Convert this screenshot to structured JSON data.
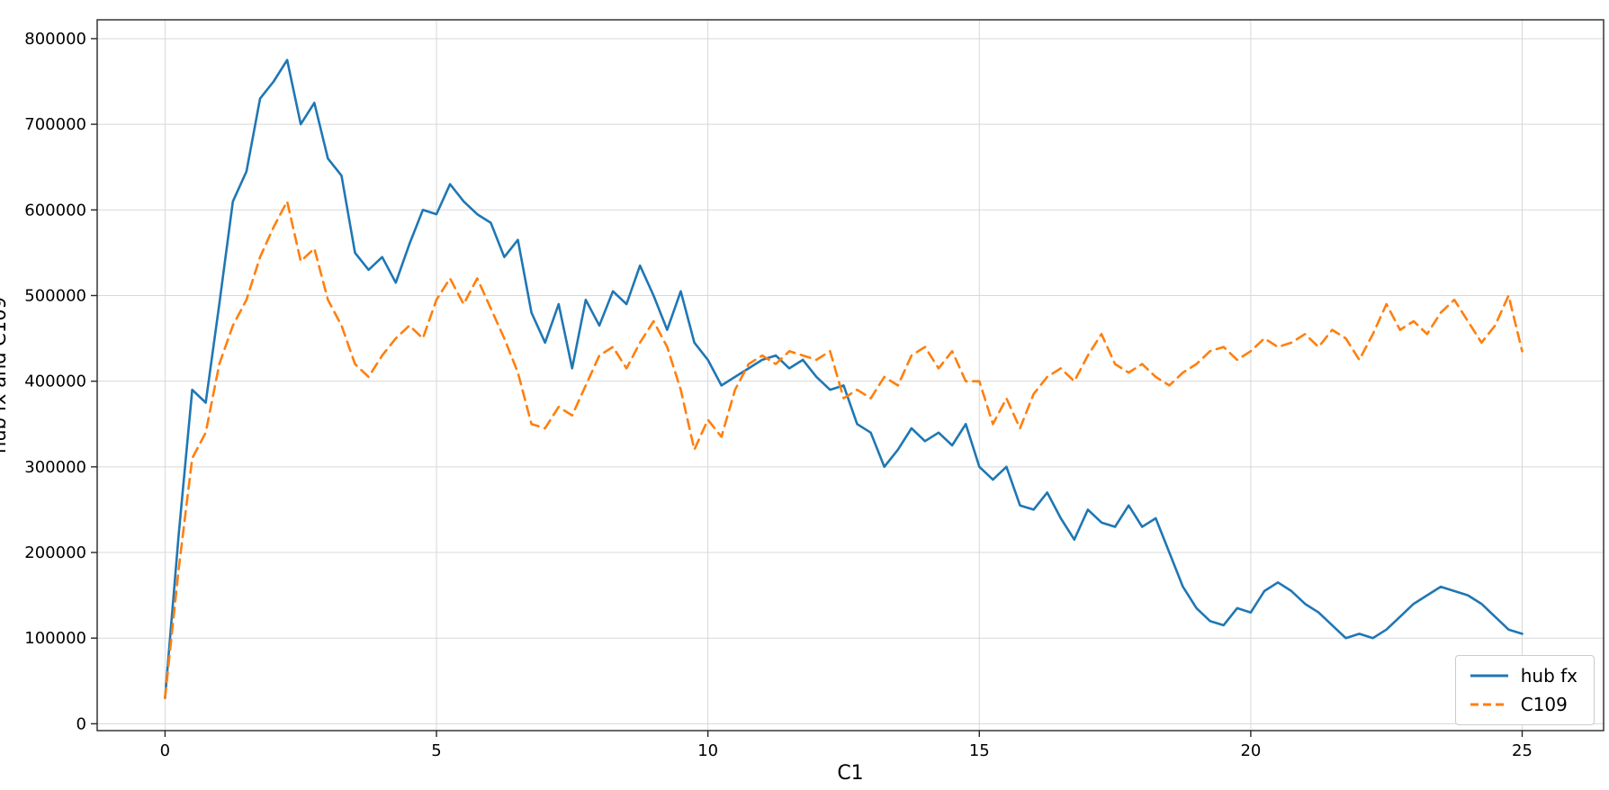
{
  "legend": {
    "items": [
      {
        "label": "hub fx",
        "color": "#1f77b4",
        "style": "solid"
      },
      {
        "label": "C109",
        "color": "#ff7f0e",
        "style": "dashed"
      }
    ]
  },
  "chart_data": {
    "type": "line",
    "title": "",
    "xlabel": "C1",
    "ylabel": "hub fx and C109",
    "xlim": [
      -1.25,
      26.5
    ],
    "ylim": [
      -8000,
      822000
    ],
    "xticks": [
      0,
      5,
      10,
      15,
      20,
      25
    ],
    "yticks": [
      0,
      100000,
      200000,
      300000,
      400000,
      500000,
      600000,
      700000,
      800000
    ],
    "grid": true,
    "grid_color": "#d8d8d8",
    "spine_color": "#262626",
    "legend_position": "lower right",
    "x_start": 0,
    "x_step": 0.25,
    "series": [
      {
        "name": "hub fx",
        "color": "#1f77b4",
        "style": "solid",
        "values": [
          30000,
          220000,
          390000,
          375000,
          490000,
          610000,
          645000,
          730000,
          750000,
          775000,
          700000,
          725000,
          660000,
          640000,
          550000,
          530000,
          545000,
          515000,
          560000,
          600000,
          595000,
          630000,
          610000,
          595000,
          585000,
          545000,
          565000,
          480000,
          445000,
          490000,
          415000,
          495000,
          465000,
          505000,
          490000,
          535000,
          500000,
          460000,
          505000,
          445000,
          425000,
          395000,
          405000,
          415000,
          425000,
          430000,
          415000,
          425000,
          405000,
          390000,
          395000,
          350000,
          340000,
          300000,
          320000,
          345000,
          330000,
          340000,
          325000,
          350000,
          300000,
          285000,
          300000,
          255000,
          250000,
          270000,
          240000,
          215000,
          250000,
          235000,
          230000,
          255000,
          230000,
          240000,
          200000,
          160000,
          135000,
          120000,
          115000,
          135000,
          130000,
          155000,
          165000,
          155000,
          140000,
          130000,
          115000,
          100000,
          105000,
          100000,
          110000,
          125000,
          140000,
          150000,
          160000,
          155000,
          150000,
          140000,
          125000,
          110000,
          105000
        ]
      },
      {
        "name": "C109",
        "color": "#ff7f0e",
        "style": "dashed",
        "values": [
          30000,
          180000,
          310000,
          340000,
          420000,
          465000,
          495000,
          545000,
          580000,
          610000,
          540000,
          555000,
          495000,
          465000,
          420000,
          405000,
          430000,
          450000,
          465000,
          450000,
          495000,
          520000,
          490000,
          520000,
          485000,
          450000,
          410000,
          350000,
          345000,
          370000,
          360000,
          395000,
          430000,
          440000,
          415000,
          445000,
          470000,
          440000,
          390000,
          320000,
          355000,
          335000,
          390000,
          420000,
          430000,
          420000,
          435000,
          430000,
          425000,
          435000,
          380000,
          390000,
          380000,
          405000,
          395000,
          430000,
          440000,
          415000,
          435000,
          400000,
          400000,
          350000,
          380000,
          345000,
          385000,
          405000,
          415000,
          400000,
          430000,
          455000,
          420000,
          410000,
          420000,
          405000,
          395000,
          410000,
          420000,
          435000,
          440000,
          425000,
          435000,
          450000,
          440000,
          445000,
          455000,
          440000,
          460000,
          450000,
          425000,
          455000,
          490000,
          460000,
          470000,
          455000,
          480000,
          495000,
          470000,
          445000,
          465000,
          500000,
          435000
        ]
      }
    ]
  }
}
